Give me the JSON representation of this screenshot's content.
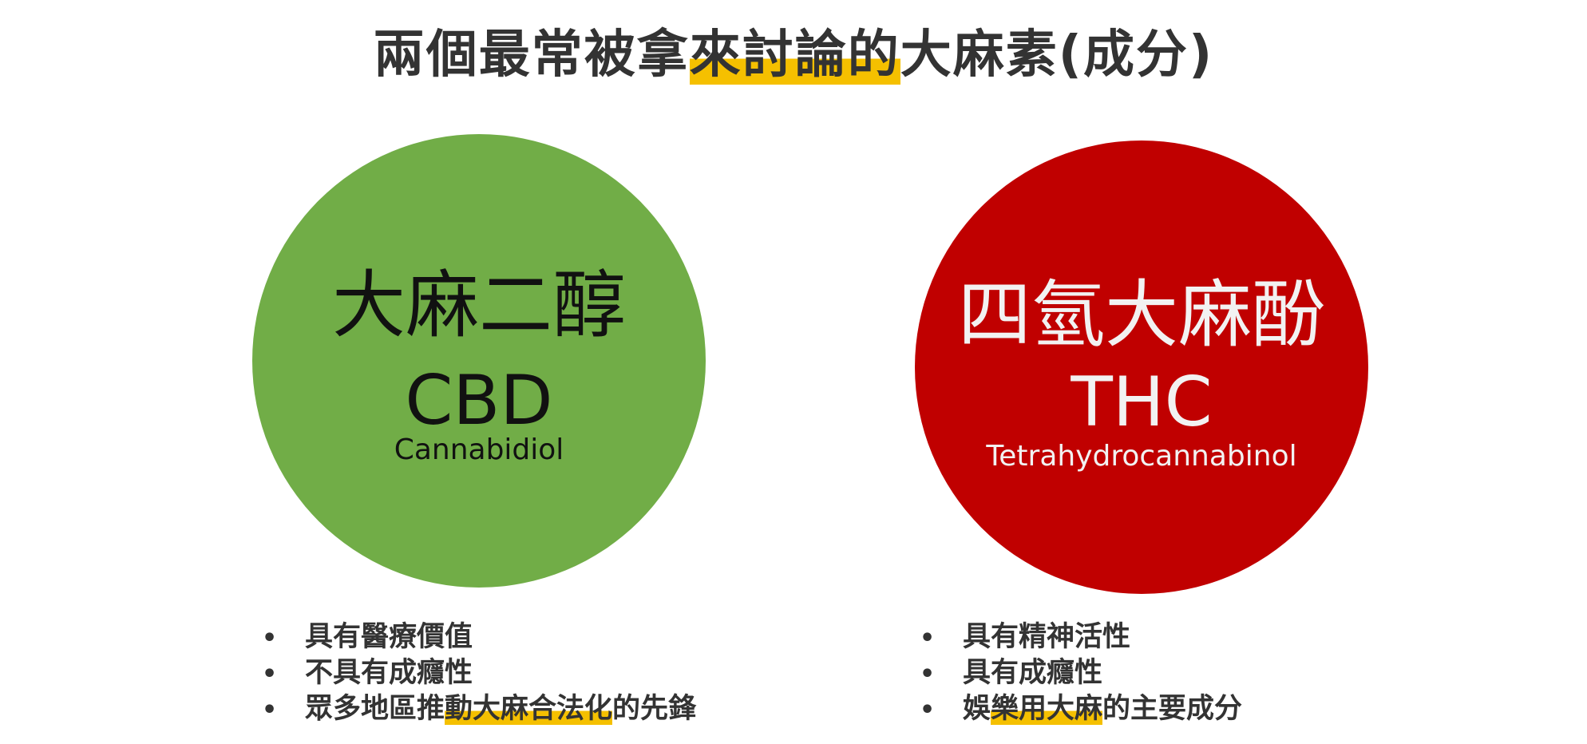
{
  "title": {
    "part1": "兩個最常被拿",
    "highlight": "來討論的",
    "part2": "大麻素(成分)"
  },
  "cbd": {
    "name_zh": "大麻二醇",
    "abbr": "CBD",
    "full_name": "Cannabidiol",
    "color": "#71ad47",
    "points": [
      {
        "before": "具有醫療價值",
        "highlight": "",
        "after": ""
      },
      {
        "before": "不具有成癮性",
        "highlight": "",
        "after": ""
      },
      {
        "before": "眾多地區推",
        "highlight": "動大麻合法化",
        "after": "的先鋒"
      }
    ]
  },
  "thc": {
    "name_zh": "四氫大麻酚",
    "abbr": "THC",
    "full_name": "Tetrahydrocannabinol",
    "color": "#c00000",
    "points": [
      {
        "before": "具有精神活性",
        "highlight": "",
        "after": ""
      },
      {
        "before": "具有成癮性",
        "highlight": "",
        "after": ""
      },
      {
        "before": "娛",
        "highlight": "樂用大麻",
        "after": "的主要成分"
      }
    ]
  },
  "bullet_char": "•",
  "highlight_color": "#f5c000"
}
